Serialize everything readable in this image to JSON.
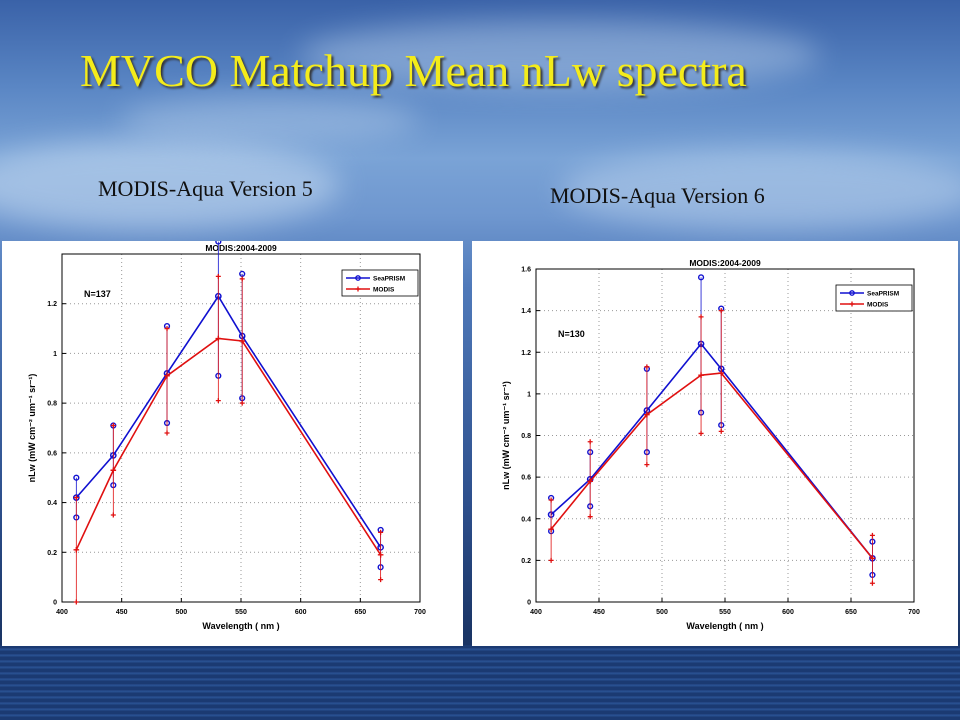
{
  "slide": {
    "title": "MVCO Matchup Mean nLw spectra",
    "left_caption": "MODIS-Aqua Version 5",
    "right_caption": "MODIS-Aqua Version 6"
  },
  "colors": {
    "title": "#f4ec1a",
    "seaprism": "#1010d0",
    "modis": "#e01010"
  },
  "chart_data": [
    {
      "type": "line",
      "title": "MODIS:2004-2009",
      "xlabel": "Wavelength ( nm )",
      "ylabel": "nLw (mW cm⁻² um⁻¹ sr⁻¹)",
      "annotation": "N=137",
      "xlim": [
        400,
        700
      ],
      "ylim": [
        0,
        1.4
      ],
      "xticks": [
        400,
        450,
        500,
        550,
        600,
        650,
        700
      ],
      "yticks": [
        0,
        0.2,
        0.4,
        0.6,
        0.8,
        1,
        1.2
      ],
      "grid": true,
      "legend_position": "top-right",
      "series": [
        {
          "name": "SeaPRISM",
          "x": [
            412,
            443,
            488,
            531,
            551,
            667
          ],
          "y": [
            0.42,
            0.59,
            0.92,
            1.23,
            1.07,
            0.22
          ],
          "err_low": [
            0.34,
            0.47,
            0.72,
            0.91,
            0.82,
            0.14
          ],
          "err_high": [
            0.5,
            0.71,
            1.11,
            1.45,
            1.32,
            0.29
          ]
        },
        {
          "name": "MODIS",
          "x": [
            412,
            443,
            488,
            531,
            551,
            667
          ],
          "y": [
            0.21,
            0.53,
            0.91,
            1.06,
            1.05,
            0.19
          ],
          "err_low": [
            0.0,
            0.35,
            0.68,
            0.81,
            0.8,
            0.09
          ],
          "err_high": [
            0.42,
            0.71,
            1.1,
            1.31,
            1.3,
            0.28
          ]
        }
      ]
    },
    {
      "type": "line",
      "title": "MODIS:2004-2009",
      "xlabel": "Wavelength ( nm )",
      "ylabel": "nLw (mW cm⁻² um⁻¹ sr⁻¹)",
      "annotation": "N=130",
      "xlim": [
        400,
        700
      ],
      "ylim": [
        0,
        1.6
      ],
      "xticks": [
        400,
        450,
        500,
        550,
        600,
        650,
        700
      ],
      "yticks": [
        0,
        0.2,
        0.4,
        0.6,
        0.8,
        1,
        1.2,
        1.4,
        1.6
      ],
      "grid": true,
      "legend_position": "top-right",
      "series": [
        {
          "name": "SeaPRISM",
          "x": [
            412,
            443,
            488,
            531,
            547,
            667
          ],
          "y": [
            0.42,
            0.59,
            0.92,
            1.24,
            1.12,
            0.21
          ],
          "err_low": [
            0.34,
            0.46,
            0.72,
            0.91,
            0.85,
            0.13
          ],
          "err_high": [
            0.5,
            0.72,
            1.12,
            1.56,
            1.41,
            0.29
          ]
        },
        {
          "name": "MODIS",
          "x": [
            412,
            443,
            488,
            531,
            547,
            667
          ],
          "y": [
            0.35,
            0.58,
            0.9,
            1.09,
            1.1,
            0.21
          ],
          "err_low": [
            0.2,
            0.41,
            0.66,
            0.81,
            0.82,
            0.09
          ],
          "err_high": [
            0.49,
            0.77,
            1.13,
            1.37,
            1.4,
            0.32
          ]
        }
      ]
    }
  ]
}
